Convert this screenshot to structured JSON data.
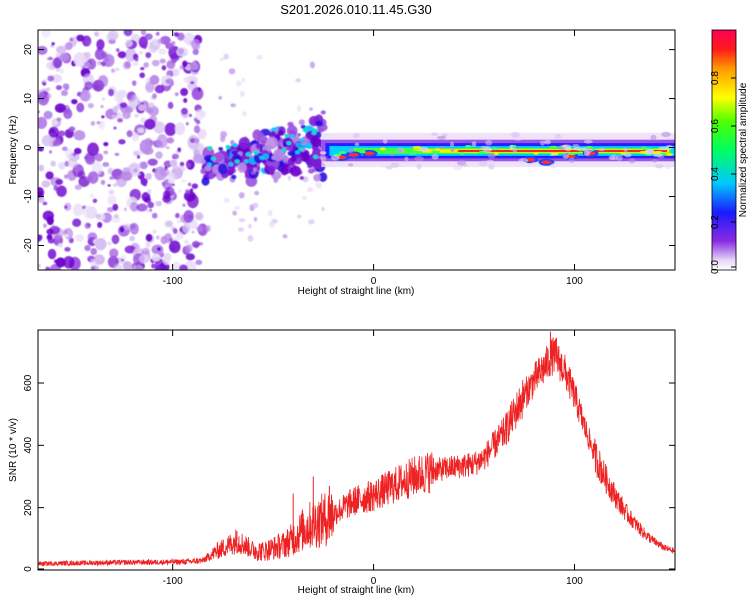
{
  "title": "S201.2026.010.11.45.G30",
  "chart_data": [
    {
      "type": "heatmap",
      "title": "S201.2026.010.11.45.G30",
      "xlabel": "Height of straight line (km)",
      "ylabel": "Frequency (Hz)",
      "xlim": [
        -167,
        150
      ],
      "ylim": [
        -25,
        24
      ],
      "xticks": [
        -100,
        0,
        100
      ],
      "yticks": [
        -20,
        -10,
        0,
        10,
        20
      ],
      "xtick_labels": [
        "-100",
        "0",
        "100"
      ],
      "ytick_labels": [
        "-20",
        "-10",
        "0",
        "10",
        "20"
      ],
      "colorbar": {
        "label": "Normalized spectral amplitude",
        "range": [
          0,
          1
        ],
        "ticks": [
          0.0,
          0.2,
          0.4,
          0.6,
          0.8
        ],
        "tick_labels": [
          "0.0",
          "0.2",
          "0.4",
          "0.6",
          "0.8"
        ]
      },
      "description_regions": [
        {
          "x_range": [
            -167,
            -85
          ],
          "freq_range": [
            -25,
            24
          ],
          "amplitude": 0.1,
          "pattern": "scattered blobs"
        },
        {
          "x_range": [
            -85,
            -25
          ],
          "freq_range": [
            -10,
            10
          ],
          "amplitude": 0.3,
          "pattern": "rising cluster"
        },
        {
          "x_range": [
            -25,
            150
          ],
          "freq_range": [
            -2,
            1
          ],
          "amplitude": 0.9,
          "pattern": "narrow band near 0 Hz"
        }
      ]
    },
    {
      "type": "line",
      "xlabel": "Height of straight line (km)",
      "ylabel": "SNR (10 * v/v)",
      "xlim": [
        -167,
        150
      ],
      "ylim": [
        0,
        770
      ],
      "xticks": [
        -100,
        0,
        100
      ],
      "yticks": [
        0,
        200,
        400,
        600
      ],
      "xtick_labels": [
        "-100",
        "0",
        "100"
      ],
      "ytick_labels": [
        "0",
        "200",
        "400",
        "600"
      ],
      "series": [
        {
          "name": "SNR",
          "color": "#ee2222",
          "x": [
            -167,
            -150,
            -130,
            -110,
            -95,
            -85,
            -78,
            -72,
            -68,
            -64,
            -60,
            -55,
            -50,
            -45,
            -40,
            -35,
            -30,
            -25,
            -20,
            -15,
            -10,
            -5,
            0,
            10,
            20,
            30,
            40,
            50,
            55,
            60,
            65,
            70,
            75,
            80,
            85,
            88,
            90,
            92,
            95,
            100,
            105,
            110,
            115,
            120,
            125,
            130,
            135,
            140,
            145,
            150
          ],
          "y": [
            20,
            22,
            24,
            25,
            26,
            30,
            60,
            80,
            95,
            80,
            65,
            60,
            70,
            80,
            100,
            130,
            150,
            160,
            180,
            200,
            220,
            230,
            240,
            270,
            300,
            320,
            330,
            340,
            360,
            400,
            440,
            500,
            560,
            610,
            650,
            680,
            690,
            670,
            640,
            560,
            460,
            370,
            300,
            240,
            190,
            150,
            115,
            90,
            70,
            60
          ]
        }
      ],
      "spikes": [
        {
          "x": -68,
          "y": 125
        },
        {
          "x": -40,
          "y": 245
        },
        {
          "x": -30,
          "y": 300
        },
        {
          "x": -22,
          "y": 270
        },
        {
          "x": 88,
          "y": 765
        },
        {
          "x": 91,
          "y": 745
        }
      ]
    }
  ]
}
